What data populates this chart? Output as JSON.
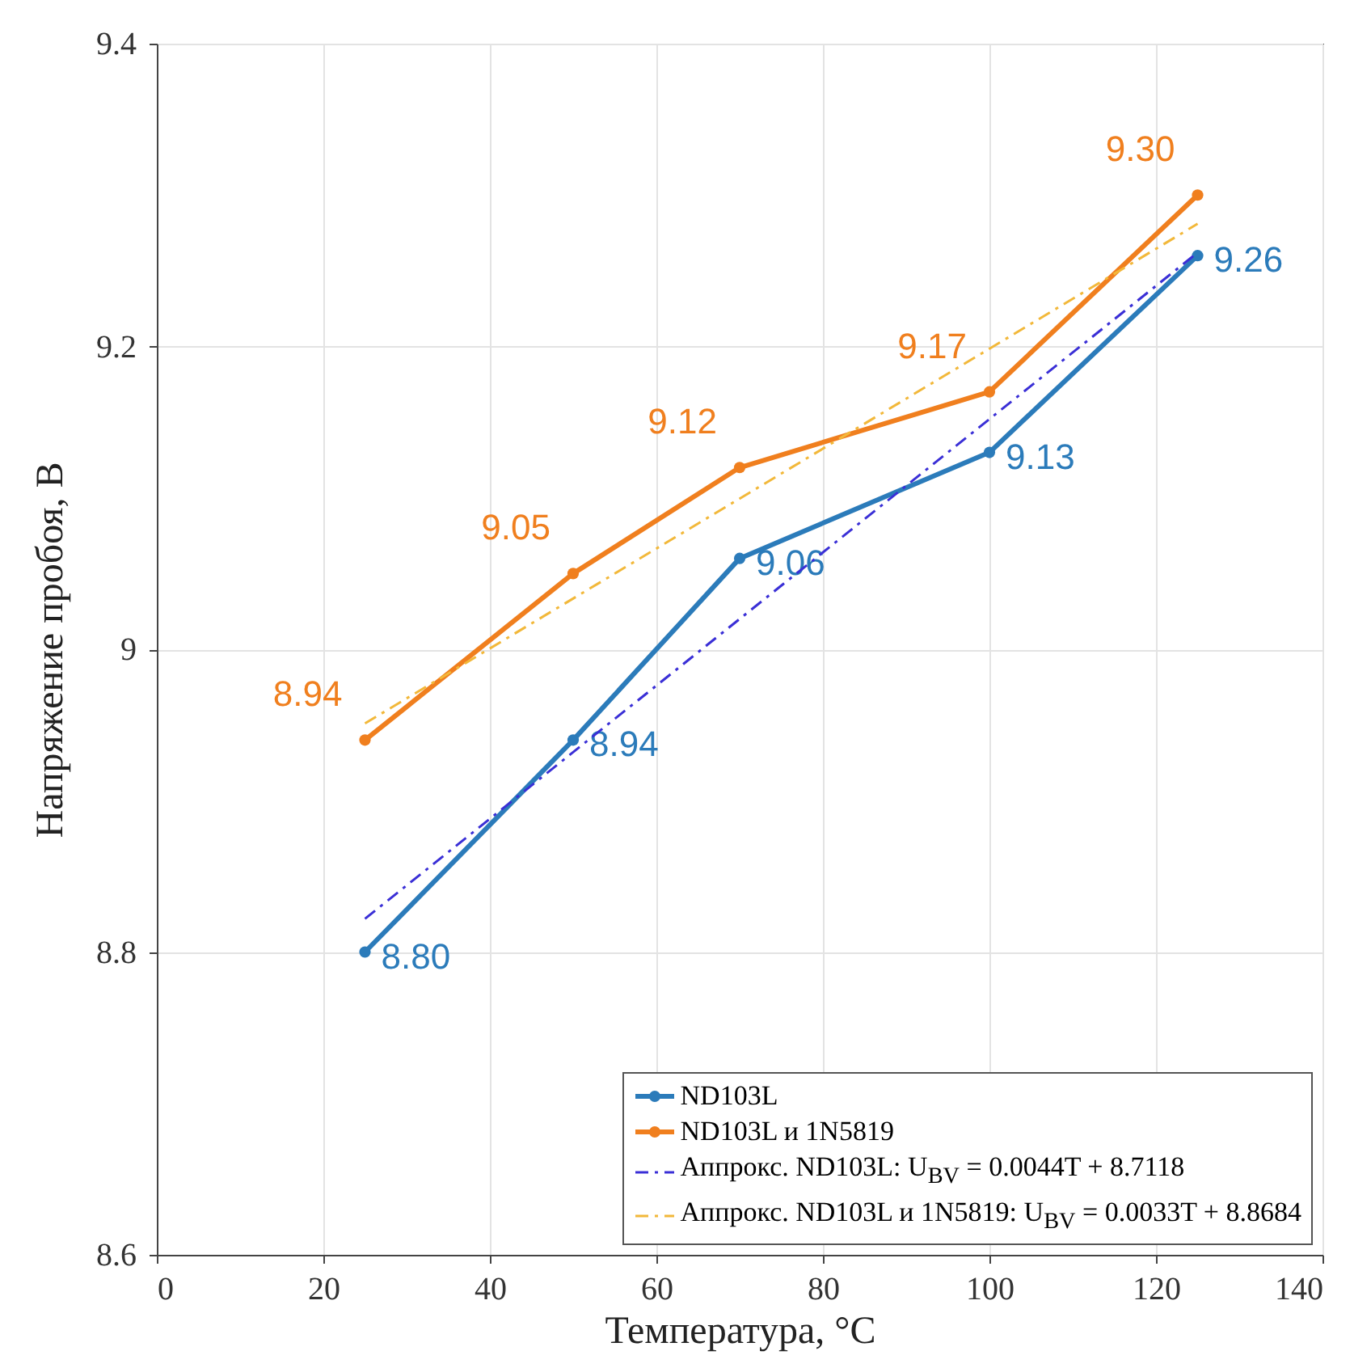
{
  "chart_data": {
    "type": "line",
    "xlabel": "Температура, °C",
    "ylabel": "Напряжение пробоя, В",
    "xlim": [
      0,
      140
    ],
    "xticks": [
      0,
      20,
      40,
      60,
      80,
      100,
      120,
      140
    ],
    "ylim": [
      8.6,
      9.4
    ],
    "yticks": [
      8.6,
      8.8,
      9,
      9.2,
      9.4
    ],
    "grid": true,
    "legend": "bottom right",
    "marker": "circle",
    "series": [
      {
        "name": "ND103L",
        "color": "#2b7bba",
        "x": [
          25,
          50,
          70,
          100,
          125
        ],
        "values": [
          8.8,
          8.94,
          9.06,
          9.13,
          9.26
        ],
        "value_labels": [
          "8.80",
          "8.94",
          "9.06",
          "9.13",
          "9.26"
        ]
      },
      {
        "name": "ND103L и 1N5819",
        "color": "#f07f1e",
        "x": [
          25,
          50,
          70,
          100,
          125
        ],
        "values": [
          8.94,
          9.05,
          9.12,
          9.17,
          9.3
        ],
        "value_labels": [
          "8.94",
          "9.05",
          "9.12",
          "9.17",
          "9.30"
        ]
      },
      {
        "name": "Аппрокс. ND103L: U$_{BV}$ = 0.0044T + 8.7118",
        "type": "line",
        "color": "#3a2fd6",
        "line_style": "dashed",
        "marker": "none",
        "x": [
          25,
          125
        ],
        "values": [
          8.822,
          9.262
        ]
      },
      {
        "name": "Аппрокс. ND103L и 1N5819: U$_{BV}$ = 0.0033T + 8.8684",
        "type": "line",
        "color": "#f2b83a",
        "line_style": "dashed",
        "marker": "none",
        "x": [
          25,
          125
        ],
        "values": [
          8.951,
          9.281
        ]
      }
    ]
  }
}
